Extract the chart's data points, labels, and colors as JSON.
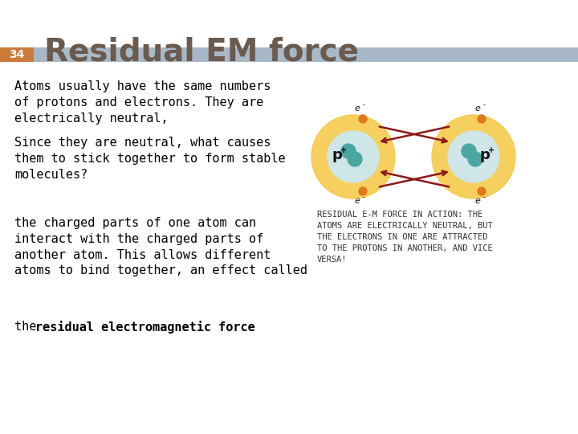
{
  "title": "Residual EM force",
  "title_color": "#6b5a4e",
  "title_fontsize": 28,
  "slide_number": "34",
  "slide_number_bg": "#cc7a3a",
  "slide_number_text_color": "#ffffff",
  "bar_color": "#a8b8c8",
  "background_color": "#ffffff",
  "body_text": [
    "Atoms usually have the same numbers\nof protons and electrons. They are\nelectrically neutral,",
    "Since they are neutral, what causes\nthem to stick together to form stable\nmolecules?",
    "the charged parts of one atom can\ninteract with the charged parts of\nanother atom. This allows different\natoms to bind together, an effect called\nthe <b>residual electromagnetic force</b>."
  ],
  "body_fontsize": 11,
  "body_color": "#000000",
  "atom_caption": "RESIDUAL E-M FORCE IN ACTION: THE\nATOMS ARE ELECTRICALLY NEUTRAL, BUT\nTHE ELECTRONS IN ONE ARE ATTRACTED\nTO THE PROTONS IN ANOTHER, AND VICE\nVERSA!",
  "caption_fontsize": 7.5,
  "caption_color": "#333333"
}
